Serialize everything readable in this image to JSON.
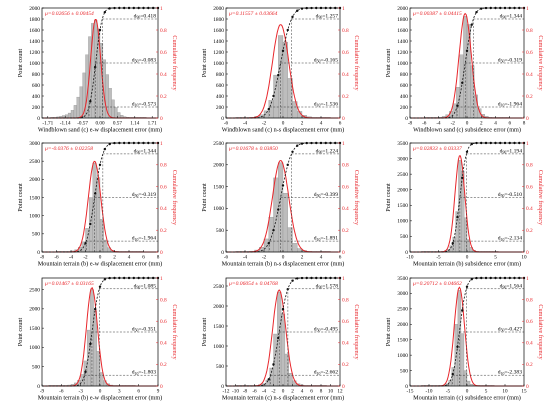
{
  "figure": {
    "y_left_label": "Point count",
    "y_right_label": "Cumulative frequency",
    "right_ticks": [
      "0",
      "0.2",
      "0.4",
      "0.6",
      "0.8",
      "1"
    ],
    "colors": {
      "hist": "#bdbdbd",
      "hist_edge": "#8a8a8a",
      "fit": "#e8262b",
      "cum": "#111111",
      "text_red": "#e8262b"
    }
  },
  "chart_data": [
    {
      "type": "bar",
      "title": "",
      "xlabel": "Windblown sand (c) e-w displacement error (mm)",
      "ylabel": "Point count",
      "xlim": [
        -1.9,
        1.9
      ],
      "ylim": [
        0,
        2000
      ],
      "x_ticks": [
        -1.71,
        -1.14,
        -0.57,
        0,
        0.57,
        1.14,
        1.71
      ],
      "x_tick_labels": [
        "-1.71",
        "-1.14",
        "-0.57",
        "0.00",
        "0.57",
        "1.14",
        "1.71"
      ],
      "y_ticks": [
        0,
        200,
        400,
        600,
        800,
        1000,
        1200,
        1400,
        1600,
        1800,
        2000
      ],
      "mu": 0.02656,
      "sigma": 0.00454,
      "peak": 1800,
      "bars": {
        "start": -1.71,
        "width": 0.095,
        "values": [
          0,
          5,
          10,
          20,
          30,
          45,
          60,
          90,
          140,
          230,
          380,
          570,
          820,
          1150,
          1480,
          1720,
          1780,
          1620,
          1360,
          1060,
          790,
          540,
          330,
          190,
          100,
          50,
          25,
          15,
          8,
          5,
          3,
          2,
          1,
          1,
          0,
          0
        ]
      },
      "mean_text": "μ=0.02656 ± 0.00454",
      "d_labels": [
        {
          "sub": "90",
          "value": "=0.418",
          "cum": 0.9
        },
        {
          "sub": "50",
          "value": "=-0.083",
          "cum": 0.5
        },
        {
          "sub": "10",
          "value": "=-0.573",
          "cum": 0.1
        }
      ]
    },
    {
      "type": "bar",
      "title": "",
      "xlabel": "Windblown sand (c) n-s displacement error (mm)",
      "ylabel": "Point count",
      "xlim": [
        -6,
        6
      ],
      "ylim": [
        0,
        2000
      ],
      "x_ticks": [
        -6,
        -4,
        -2,
        0,
        2,
        4,
        6
      ],
      "x_tick_labels": [
        "-6",
        "-4",
        "-2",
        "0",
        "2",
        "4",
        "6"
      ],
      "y_ticks": [
        0,
        200,
        400,
        600,
        800,
        1000,
        1200,
        1400,
        1600,
        1800,
        2000
      ],
      "mu": 0.11557,
      "sigma": 0.03664,
      "peak": 1700,
      "bars": {
        "start": -5,
        "width": 0.5,
        "values": [
          2,
          4,
          8,
          15,
          30,
          60,
          130,
          320,
          780,
          1500,
          1380,
          720,
          300,
          120,
          50,
          22,
          10,
          5,
          3,
          2
        ]
      },
      "mean_text": "μ=0.11557 ± 0.03664",
      "d_labels": [
        {
          "sub": "90",
          "value": "=1.257",
          "cum": 0.9
        },
        {
          "sub": "50",
          "value": "=-0.165",
          "cum": 0.5
        },
        {
          "sub": "10",
          "value": "=-1.536",
          "cum": 0.1
        }
      ]
    },
    {
      "type": "bar",
      "title": "",
      "xlabel": "Windblown sand (c) subsidence error (mm)",
      "ylabel": "Point count",
      "xlim": [
        -8,
        8
      ],
      "ylim": [
        0,
        2000
      ],
      "x_ticks": [
        -8,
        -6,
        -4,
        -2,
        0,
        2,
        4,
        6,
        8
      ],
      "x_tick_labels": [
        "-8",
        "-6",
        "-4",
        "-2",
        "0",
        "2",
        "4",
        "6",
        "8"
      ],
      "y_ticks": [
        0,
        200,
        400,
        600,
        800,
        1000,
        1200,
        1400,
        1600,
        1800,
        2000
      ],
      "mu": 0.00387,
      "sigma": 0.04415,
      "peak": 1900,
      "bars": {
        "start": -6,
        "width": 0.5,
        "values": [
          1,
          2,
          4,
          8,
          15,
          30,
          60,
          120,
          260,
          560,
          1150,
          1850,
          1700,
          950,
          420,
          170,
          70,
          30,
          14,
          7,
          3,
          2,
          1,
          1
        ]
      },
      "mean_text": "μ=0.00387 ± 0.04415",
      "d_labels": [
        {
          "sub": "90",
          "value": "=1.344",
          "cum": 0.9
        },
        {
          "sub": "50",
          "value": "=-0.319",
          "cum": 0.5
        },
        {
          "sub": "10",
          "value": "=-1.964",
          "cum": 0.1
        }
      ]
    },
    {
      "type": "bar",
      "title": "",
      "xlabel": "Mountain terrain (b) e-w displacement error (mm)",
      "ylabel": "Point count",
      "xlim": [
        -8,
        8
      ],
      "ylim": [
        0,
        3000
      ],
      "x_ticks": [
        -8,
        -6,
        -4,
        -2,
        0,
        2,
        4,
        6,
        8
      ],
      "x_tick_labels": [
        "-8",
        "-6",
        "-4",
        "-2",
        "0",
        "2",
        "4",
        "6",
        "8"
      ],
      "y_ticks": [
        0,
        500,
        1000,
        1500,
        2000,
        2500,
        3000
      ],
      "mu": -0.0376,
      "sigma": 0.02258,
      "peak": 2500,
      "bars": {
        "start": -6,
        "width": 0.5,
        "values": [
          2,
          4,
          8,
          15,
          30,
          60,
          130,
          280,
          650,
          1500,
          2450,
          2050,
          900,
          330,
          120,
          50,
          22,
          10,
          5,
          3,
          2,
          1,
          1,
          1
        ]
      },
      "mean_text": "μ=-0.0376 ± 0.02258",
      "d_labels": [
        {
          "sub": "90",
          "value": "=1.344",
          "cum": 0.9
        },
        {
          "sub": "50",
          "value": "=-0.319",
          "cum": 0.5
        },
        {
          "sub": "10",
          "value": "=-1.964",
          "cum": 0.1
        }
      ]
    },
    {
      "type": "bar",
      "title": "",
      "xlabel": "Mountain terrain (b) n-s displacement error (mm)",
      "ylabel": "Point count",
      "xlim": [
        -6,
        6
      ],
      "ylim": [
        0,
        2500
      ],
      "x_ticks": [
        -6,
        -4,
        -2,
        0,
        2,
        4,
        6
      ],
      "x_tick_labels": [
        "-6",
        "-4",
        "-2",
        "0",
        "2",
        "4",
        "6"
      ],
      "y_ticks": [
        0,
        500,
        1000,
        1500,
        2000,
        2500
      ],
      "mu": 0.01678,
      "sigma": 0.0385,
      "peak": 2100,
      "bars": {
        "start": -5,
        "width": 0.5,
        "values": [
          2,
          5,
          10,
          20,
          45,
          110,
          300,
          800,
          1700,
          2050,
          1350,
          560,
          200,
          80,
          35,
          15,
          7,
          4,
          2,
          1
        ]
      },
      "mean_text": "μ=0.01678 ± 0.03850",
      "d_labels": [
        {
          "sub": "90",
          "value": "=1.224",
          "cum": 0.9
        },
        {
          "sub": "50",
          "value": "=-0.399",
          "cum": 0.5
        },
        {
          "sub": "10",
          "value": "=-1.891",
          "cum": 0.1
        }
      ]
    },
    {
      "type": "bar",
      "title": "",
      "xlabel": "Mountain terrain (b) subsidence error (mm)",
      "ylabel": "Point count",
      "xlim": [
        -10,
        10
      ],
      "ylim": [
        0,
        3500
      ],
      "x_ticks": [
        -10,
        -5,
        0,
        5,
        10
      ],
      "x_tick_labels": [
        "-10",
        "-5",
        "0",
        "5",
        "10"
      ],
      "y_ticks": [
        0,
        500,
        1000,
        1500,
        2000,
        2500,
        3000,
        3500
      ],
      "mu": 0.02833,
      "sigma": 0.03337,
      "peak": 3100,
      "bars": {
        "start": -8,
        "width": 0.5,
        "values": [
          1,
          1,
          2,
          3,
          5,
          8,
          15,
          25,
          45,
          90,
          200,
          480,
          1300,
          2950,
          2600,
          1100,
          400,
          150,
          60,
          25,
          12,
          6,
          3,
          2,
          1,
          1,
          1,
          0,
          0,
          0,
          0,
          0
        ]
      },
      "mean_text": "μ=0.02833 ± 0.03337",
      "d_labels": [
        {
          "sub": "90",
          "value": "=1.194",
          "cum": 0.9
        },
        {
          "sub": "50",
          "value": "=-0.510",
          "cum": 0.5
        },
        {
          "sub": "10",
          "value": "=-2.134",
          "cum": 0.1
        }
      ]
    },
    {
      "type": "bar",
      "title": "",
      "xlabel": "Mountain terrain (b) e-w displacement error (mm)",
      "ylabel": "Point count",
      "xlim": [
        -9,
        9
      ],
      "ylim": [
        0,
        2800
      ],
      "x_ticks": [
        -9,
        -6,
        -3,
        0,
        3,
        6,
        9
      ],
      "x_tick_labels": [
        "-9",
        "-6",
        "-3",
        "0",
        "3",
        "6",
        "9"
      ],
      "y_ticks": [
        0,
        500,
        1000,
        1500,
        2000,
        2500
      ],
      "mu": 0.01467,
      "sigma": 0.03165,
      "peak": 2550,
      "bars": {
        "start": -8,
        "width": 0.5,
        "values": [
          1,
          2,
          3,
          5,
          8,
          14,
          25,
          45,
          80,
          150,
          300,
          650,
          1450,
          2500,
          1950,
          900,
          350,
          140,
          60,
          25,
          12,
          6,
          3,
          2,
          1,
          1,
          1,
          0,
          0,
          0,
          0,
          0
        ]
      },
      "mean_text": "μ=0.01467 ± 0.03165",
      "d_labels": [
        {
          "sub": "90",
          "value": "=1.085",
          "cum": 0.9
        },
        {
          "sub": "50",
          "value": "=-0.351",
          "cum": 0.5
        },
        {
          "sub": "10",
          "value": "=-1.803",
          "cum": 0.1
        }
      ]
    },
    {
      "type": "bar",
      "title": "",
      "xlabel": "Mountain terrain (c) n-s displacement error (mm)",
      "ylabel": "Point count",
      "xlim": [
        -12,
        12
      ],
      "ylim": [
        0,
        2700
      ],
      "x_ticks": [
        -12,
        -10,
        -8,
        -6,
        -4,
        -2,
        0,
        2,
        4,
        6,
        8,
        10,
        12
      ],
      "x_tick_labels": [
        "-12",
        "-10",
        "-8",
        "-6",
        "-4",
        "-2",
        "0",
        "2",
        "4",
        "6",
        "8",
        "10",
        "12"
      ],
      "y_ticks": [
        0,
        500,
        1000,
        1500,
        2000,
        2500
      ],
      "mu": 0.06054,
      "sigma": 0.04768,
      "peak": 2400,
      "bars": {
        "start": -10,
        "width": 0.8,
        "values": [
          1,
          2,
          3,
          5,
          8,
          15,
          30,
          60,
          150,
          450,
          1300,
          2350,
          1800,
          800,
          320,
          130,
          55,
          25,
          12,
          6,
          3,
          2,
          1,
          1,
          0
        ]
      },
      "mean_text": "μ=0.06054 ± 0.04768",
      "d_labels": [
        {
          "sub": "90",
          "value": "=1.578",
          "cum": 0.9
        },
        {
          "sub": "50",
          "value": "=-0.495",
          "cum": 0.5
        },
        {
          "sub": "10",
          "value": "=-2.662",
          "cum": 0.1
        }
      ]
    },
    {
      "type": "bar",
      "title": "",
      "xlabel": "Mountain terrain (c) subsidence error (mm)",
      "ylabel": "Point count",
      "xlim": [
        -15,
        15
      ],
      "ylim": [
        0,
        3500
      ],
      "x_ticks": [
        -15,
        -10,
        -5,
        0,
        5,
        10,
        15
      ],
      "x_tick_labels": [
        "-15",
        "-10",
        "-5",
        "0",
        "5",
        "10",
        "15"
      ],
      "y_ticks": [
        0,
        500,
        1000,
        1500,
        2000,
        2500,
        3000,
        3500
      ],
      "mu": 0.20712,
      "sigma": 0.04662,
      "peak": 3200,
      "bars": {
        "start": -12,
        "width": 0.8,
        "values": [
          1,
          1,
          2,
          3,
          5,
          8,
          15,
          30,
          70,
          180,
          600,
          2000,
          3100,
          1700,
          500,
          160,
          60,
          25,
          12,
          6,
          3,
          2,
          1,
          1,
          0,
          0,
          0,
          0,
          0,
          0
        ]
      },
      "mean_text": "μ=0.20712 ± 0.04662",
      "d_labels": [
        {
          "sub": "90",
          "value": "=1.564",
          "cum": 0.9
        },
        {
          "sub": "50",
          "value": "=-0.427",
          "cum": 0.5
        },
        {
          "sub": "10",
          "value": "=-2.383",
          "cum": 0.1
        }
      ]
    }
  ]
}
